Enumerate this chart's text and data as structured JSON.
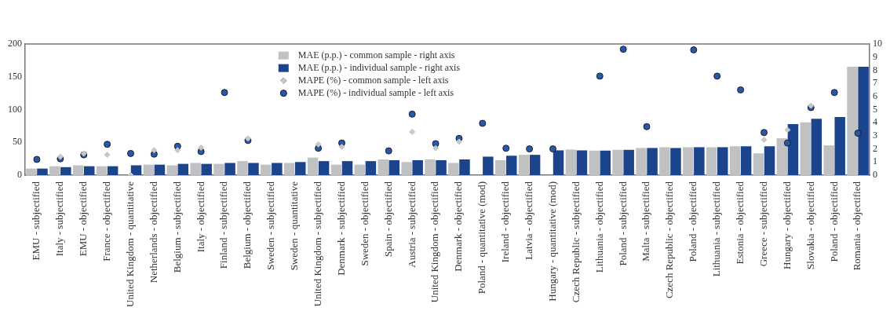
{
  "chart_data": {
    "type": "bar",
    "categories": [
      "EMU - subjectified",
      "Italy - subjectified",
      "EMU - objectified",
      "France - objectified",
      "United Kingdom - quantitative",
      "Netherlands - objectified",
      "Belgium - subjectified",
      "Italy - objectified",
      "Finland - subjectified",
      "Belgium - objectified",
      "Sweden - subjectified",
      "Sweden - quantitative",
      "United Kingdom - subjectified",
      "Denmark - subjectified",
      "Sweden - objectified",
      "Spain - objectified",
      "Austria - subjectified",
      "United Kingdom - objectified",
      "Denmark - objectified",
      "Poland - quantitative (mod)",
      "Ireland - objectified",
      "Latvia - objectified",
      "Hungary - quantitative (mod)",
      "Czech Republic - subjectified",
      "Lithuania - objectified",
      "Poland - subjectified",
      "Malta - subjectified",
      "Czech Republic - objectified",
      "Poland - objectified",
      "Lithuania - subjectified",
      "Estonia - objectified",
      "Greece - subjectified",
      "Hungary - objectified",
      "Slovakia - objectified",
      "Poland - objectified",
      "Romania - objectified"
    ],
    "series": [
      {
        "name": "MAE (p.p.) - common sample - right axis",
        "type": "bar",
        "axis": "y2",
        "color": "#c0c1c3",
        "values": [
          0.5,
          0.68,
          0.75,
          0.68,
          null,
          0.8,
          0.75,
          0.93,
          0.86,
          1.07,
          0.8,
          0.93,
          1.34,
          0.8,
          0.8,
          1.2,
          1.0,
          1.2,
          0.93,
          null,
          1.14,
          1.55,
          null,
          1.95,
          1.87,
          1.93,
          2.07,
          2.13,
          2.13,
          2.13,
          2.2,
          1.66,
          2.81,
          4.02,
          2.27,
          8.27
        ]
      },
      {
        "name": "MAE (p.p.) - individual sample - right axis",
        "type": "bar",
        "axis": "y2",
        "color": "#1b448c",
        "values": [
          0.5,
          0.61,
          0.68,
          0.68,
          0.75,
          0.8,
          0.86,
          0.86,
          0.93,
          0.93,
          0.93,
          1.0,
          1.07,
          1.07,
          1.07,
          1.14,
          1.14,
          1.14,
          1.2,
          1.41,
          1.48,
          1.55,
          1.89,
          1.89,
          1.87,
          1.93,
          2.07,
          2.07,
          2.13,
          2.13,
          2.2,
          2.2,
          3.89,
          4.29,
          4.43,
          8.27
        ]
      },
      {
        "name": "MAPE (%) - common sample - left axis",
        "type": "scatter",
        "axis": "y",
        "marker": "diamond",
        "color": "#c8c8c8",
        "values": [
          null,
          28,
          33,
          31,
          0,
          38,
          38,
          42,
          null,
          56,
          null,
          null,
          47,
          43,
          null,
          null,
          66,
          41,
          51,
          null,
          null,
          null,
          null,
          null,
          null,
          null,
          null,
          null,
          null,
          null,
          null,
          54,
          69,
          106,
          null,
          null
        ]
      },
      {
        "name": "MAPE (%) - individual sample - left axis",
        "type": "scatter",
        "axis": "y",
        "marker": "circle",
        "color": "#2a58a8",
        "values": [
          24,
          25,
          31,
          47,
          33,
          32,
          44,
          36,
          126,
          53,
          null,
          null,
          41,
          49,
          null,
          37,
          93,
          48,
          56,
          79,
          41,
          40,
          40,
          null,
          151,
          192,
          74,
          null,
          191,
          151,
          130,
          65,
          49,
          103,
          126,
          64
        ]
      }
    ],
    "ylim": [
      0,
      200
    ],
    "yticks": [
      0,
      50,
      100,
      150,
      200
    ],
    "y2lim": [
      0,
      10
    ],
    "y2ticks": [
      0,
      1,
      2,
      3,
      4,
      5,
      6,
      7,
      8,
      9,
      10
    ],
    "grid": false,
    "legend": "top"
  }
}
